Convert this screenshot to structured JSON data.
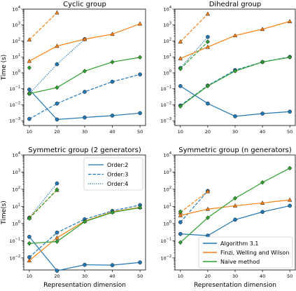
{
  "chart_data": [
    {
      "type": "line",
      "title": "Cyclic group",
      "xlabel": "",
      "ylabel": "Time (s)",
      "yscale": "log",
      "xticks": [
        10,
        20,
        30,
        40,
        50
      ],
      "ytick_exponents": [
        -3,
        -2,
        -1,
        0,
        1,
        2,
        3,
        4
      ],
      "series": [
        {
          "method": "algorithm",
          "order": 2,
          "x": [
            10,
            20,
            30,
            40,
            50
          ],
          "y": [
            0.09,
            0.0012,
            0.0016,
            0.0021,
            0.003
          ]
        },
        {
          "method": "algorithm",
          "order": 3,
          "x": [
            10,
            20,
            30,
            40,
            50
          ],
          "y": [
            0.0013,
            0.012,
            0.065,
            0.28,
            0.8
          ]
        },
        {
          "method": "algorithm",
          "order": 4,
          "x": [
            10,
            20,
            30
          ],
          "y": [
            0.05,
            3.5,
            130
          ]
        },
        {
          "method": "finzi",
          "order": 2,
          "x": [
            10,
            20,
            30,
            40,
            50
          ],
          "y": [
            5.5,
            48,
            130,
            270,
            1200
          ]
        },
        {
          "method": "finzi",
          "order": 3,
          "x": [
            10,
            20
          ],
          "y": [
            120,
            6000
          ]
        },
        {
          "method": "naive",
          "order": 2,
          "x": [
            10,
            20,
            30,
            40,
            50
          ],
          "y": [
            0.05,
            0.12,
            1.3,
            4.8,
            9.5
          ]
        },
        {
          "method": "naive",
          "order": 3,
          "x": [
            10
          ],
          "y": [
            2.1
          ]
        }
      ]
    },
    {
      "type": "line",
      "title": "Dihedral group",
      "xlabel": "",
      "ylabel": "",
      "yscale": "log",
      "xticks": [
        10,
        20,
        30,
        40,
        50
      ],
      "ytick_exponents": [
        -3,
        -2,
        -1,
        0,
        1,
        2,
        3,
        4
      ],
      "series": [
        {
          "method": "algorithm",
          "order": 2,
          "x": [
            10,
            20,
            30,
            40,
            50
          ],
          "y": [
            0.15,
            0.012,
            0.0019,
            0.0028,
            0.0037
          ]
        },
        {
          "method": "algorithm",
          "order": 3,
          "x": [
            10,
            20,
            30,
            40,
            50
          ],
          "y": [
            0.009,
            0.16,
            1.5,
            4.8,
            10
          ]
        },
        {
          "method": "algorithm",
          "order": 4,
          "x": [
            10,
            20
          ],
          "y": [
            2.0,
            180
          ]
        },
        {
          "method": "finzi",
          "order": 2,
          "x": [
            10,
            20,
            30,
            40,
            50
          ],
          "y": [
            8,
            42,
            220,
            550,
            1700
          ]
        },
        {
          "method": "finzi",
          "order": 3,
          "x": [
            10,
            20
          ],
          "y": [
            90,
            5000
          ]
        },
        {
          "method": "naive",
          "order": 2,
          "x": [
            10,
            20,
            30,
            40,
            50
          ],
          "y": [
            0.008,
            0.15,
            1.3,
            4.8,
            9.5
          ]
        },
        {
          "method": "naive",
          "order": 3,
          "x": [
            10,
            20
          ],
          "y": [
            1.8,
            90
          ]
        }
      ]
    },
    {
      "type": "line",
      "title": "Symmetric group (2 generators)",
      "xlabel": "Representation dimension",
      "ylabel": "Time(s)",
      "yscale": "log",
      "xticks": [
        10,
        20,
        30,
        40,
        50
      ],
      "ytick_exponents": [
        -2,
        -1,
        0,
        1,
        2,
        3,
        4
      ],
      "legend": {
        "title": "",
        "placement": "upper-right",
        "entries": [
          "Order:2",
          "Order:3",
          "Order:4"
        ]
      },
      "series": [
        {
          "method": "algorithm",
          "order": 2,
          "x": [
            10,
            20,
            30,
            40,
            50
          ],
          "y": [
            0.17,
            0.0018,
            0.004,
            0.0038,
            0.0055
          ]
        },
        {
          "method": "algorithm",
          "order": 3,
          "x": [
            10,
            20,
            30,
            40,
            50
          ],
          "y": [
            0.011,
            0.3,
            1.8,
            5.5,
            12
          ]
        },
        {
          "method": "algorithm",
          "order": 4,
          "x": [
            10,
            20
          ],
          "y": [
            2.2,
            220
          ]
        },
        {
          "method": "finzi",
          "order": 2,
          "x": [
            10,
            20,
            30,
            40,
            50
          ],
          "y": [
            0.007,
            0.15,
            1.4,
            4.8,
            9
          ]
        },
        {
          "method": "finzi",
          "order": 3,
          "x": [
            10,
            20
          ],
          "y": [
            2.2,
            90
          ]
        },
        {
          "method": "naive",
          "order": 2,
          "x": [
            10,
            20,
            30,
            40,
            50
          ],
          "y": [
            0.07,
            0.09,
            1.3,
            4.5,
            8.5
          ]
        },
        {
          "method": "naive",
          "order": 3,
          "x": [
            10,
            20
          ],
          "y": [
            2.0,
            95
          ]
        }
      ]
    },
    {
      "type": "line",
      "title": "Symmetric group (n generators)",
      "xlabel": "Representation dimension",
      "ylabel": "",
      "yscale": "log",
      "xticks": [
        10,
        20,
        30,
        40,
        50
      ],
      "ytick_exponents": [
        -2,
        -1,
        0,
        1,
        2,
        3,
        4
      ],
      "legend": {
        "title": "",
        "placement": "lower-right",
        "entries": [
          "Algorithm 3.1",
          "Finzi, Welling and Wilson",
          "Naive method"
        ]
      },
      "series": [
        {
          "method": "algorithm",
          "order": 2,
          "x": [
            10,
            20,
            30,
            40,
            50
          ],
          "y": [
            0.25,
            0.2,
            1.7,
            4.8,
            11
          ]
        },
        {
          "method": "algorithm",
          "order": 3,
          "x": [
            10,
            20
          ],
          "y": [
            1.2,
            80
          ]
        },
        {
          "method": "finzi",
          "order": 2,
          "x": [
            10,
            20,
            30,
            40,
            50
          ],
          "y": [
            3,
            7,
            11,
            16,
            24
          ]
        },
        {
          "method": "finzi",
          "order": 3,
          "x": [
            10,
            20
          ],
          "y": [
            4.5,
            75
          ]
        },
        {
          "method": "naive",
          "order": 2,
          "x": [
            10,
            20,
            30,
            40,
            50
          ],
          "y": [
            0.08,
            2.2,
            30,
            250,
            1700
          ]
        },
        {
          "method": "naive",
          "order": 3,
          "x": [
            10
          ],
          "y": [
            5
          ]
        }
      ]
    }
  ],
  "style": {
    "colors": {
      "algorithm": "#1f77b4",
      "finzi": "#ff7f0e",
      "naive": "#2ca02c"
    },
    "markers": {
      "algorithm": "circle",
      "finzi": "triangle",
      "naive": "diamond"
    },
    "dash_by_order": {
      "2": "solid",
      "3": "dashed",
      "4": "dotted"
    }
  }
}
